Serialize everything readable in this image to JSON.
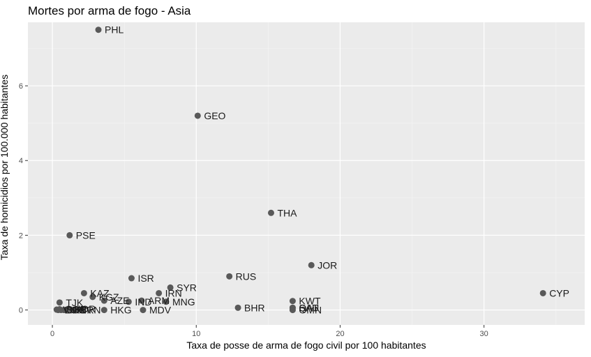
{
  "chart_data": {
    "type": "scatter",
    "title": "Mortes por arma de fogo - Asia",
    "xlabel": "Taxa de posse de arma de fogo civil por 100 habitantes",
    "ylabel": "Taxa de homicidios por 100.000 habitantes",
    "xlim": [
      -1.7,
      37
    ],
    "ylim": [
      -0.4,
      7.7
    ],
    "x_ticks": [
      0,
      10,
      20,
      30
    ],
    "y_ticks": [
      0,
      2,
      4,
      6
    ],
    "grid": true,
    "point_color": "#595959",
    "panel_color": "#ebebeb",
    "points": [
      {
        "label": "PHL",
        "x": 3.2,
        "y": 7.5
      },
      {
        "label": "GEO",
        "x": 10.1,
        "y": 5.2
      },
      {
        "label": "THA",
        "x": 15.2,
        "y": 2.6
      },
      {
        "label": "PSE",
        "x": 1.2,
        "y": 2.0
      },
      {
        "label": "JOR",
        "x": 18.0,
        "y": 1.2
      },
      {
        "label": "RUS",
        "x": 12.3,
        "y": 0.9
      },
      {
        "label": "ISR",
        "x": 5.5,
        "y": 0.85
      },
      {
        "label": "SYR",
        "x": 8.2,
        "y": 0.6
      },
      {
        "label": "IRN",
        "x": 7.4,
        "y": 0.45
      },
      {
        "label": "KAZ",
        "x": 2.2,
        "y": 0.45
      },
      {
        "label": "CYP",
        "x": 34.1,
        "y": 0.45
      },
      {
        "label": "KGZ",
        "x": 2.8,
        "y": 0.35
      },
      {
        "label": "AZE",
        "x": 3.6,
        "y": 0.25
      },
      {
        "label": "ARM",
        "x": 6.2,
        "y": 0.25
      },
      {
        "label": "IND",
        "x": 5.3,
        "y": 0.22
      },
      {
        "label": "MNG",
        "x": 7.9,
        "y": 0.22
      },
      {
        "label": "KWT",
        "x": 16.7,
        "y": 0.24
      },
      {
        "label": "TJK",
        "x": 0.5,
        "y": 0.2
      },
      {
        "label": "BHR",
        "x": 12.9,
        "y": 0.06
      },
      {
        "label": "SAU",
        "x": 16.7,
        "y": 0.06
      },
      {
        "label": "QAT",
        "x": 16.7,
        "y": 0.06
      },
      {
        "label": "OMN",
        "x": 16.7,
        "y": 0.0
      },
      {
        "label": "HKG",
        "x": 3.6,
        "y": 0.0
      },
      {
        "label": "MDV",
        "x": 6.3,
        "y": 0.0
      },
      {
        "label": "BRN",
        "x": 1.5,
        "y": 0.0
      },
      {
        "label": "KOR",
        "x": 1.1,
        "y": 0.03
      },
      {
        "label": "SGP",
        "x": 0.5,
        "y": 0.02
      },
      {
        "label": "JPN",
        "x": 0.6,
        "y": 0.0
      },
      {
        "label": "CHN",
        "x": 0.8,
        "y": 0.0
      },
      {
        "label": "VNM",
        "x": 0.3,
        "y": 0.01
      },
      {
        "label": "LKA",
        "x": 0.4,
        "y": 0.0
      }
    ]
  }
}
